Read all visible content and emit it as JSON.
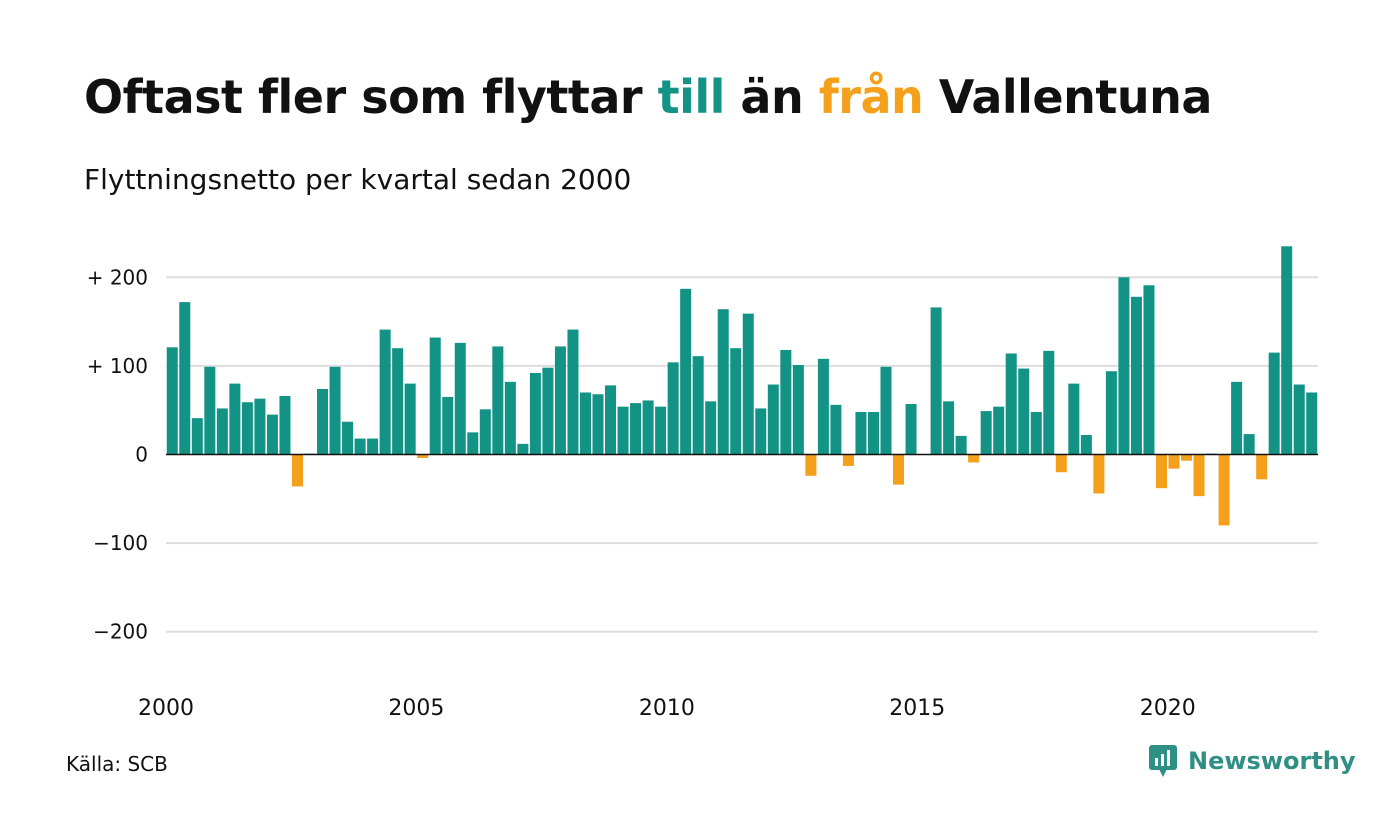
{
  "header": {
    "title_part1": "Oftast fler som flyttar ",
    "title_to": "till",
    "title_part2": " än ",
    "title_from": "från",
    "title_part3": " Vallentuna",
    "subtitle": "Flyttningsnetto per kvartal sedan 2000"
  },
  "footer": {
    "source": "Källa: SCB",
    "logo_text": "Newsworthy",
    "logo_icon": "newsworthy-logo-icon"
  },
  "colors": {
    "positive": "#139385",
    "negative": "#f5a01a",
    "grid": "#dddddd",
    "zero_line": "#111111",
    "logo": "#2f8f84"
  },
  "chart_data": {
    "type": "bar",
    "title": "Oftast fler som flyttar till än från Vallentuna",
    "subtitle": "Flyttningsnetto per kvartal sedan 2000",
    "xlabel": "",
    "ylabel": "",
    "ylim": [
      -250,
      250
    ],
    "y_ticks": [
      200,
      100,
      0,
      -100,
      -200
    ],
    "y_tick_labels": [
      "+ 200",
      "+ 100",
      "0",
      "−100",
      "−200"
    ],
    "x_ticks": [
      2000,
      2005,
      2010,
      2015,
      2020
    ],
    "x_tick_labels": [
      "2000",
      "2005",
      "2010",
      "2015",
      "2020"
    ],
    "start": "2000 Q1",
    "end": "2022 Q4",
    "grid": true,
    "categories": [
      "2000 Q1",
      "2000 Q2",
      "2000 Q3",
      "2000 Q4",
      "2001 Q1",
      "2001 Q2",
      "2001 Q3",
      "2001 Q4",
      "2002 Q1",
      "2002 Q2",
      "2002 Q3",
      "2002 Q4",
      "2003 Q1",
      "2003 Q2",
      "2003 Q3",
      "2003 Q4",
      "2004 Q1",
      "2004 Q2",
      "2004 Q3",
      "2004 Q4",
      "2005 Q1",
      "2005 Q2",
      "2005 Q3",
      "2005 Q4",
      "2006 Q1",
      "2006 Q2",
      "2006 Q3",
      "2006 Q4",
      "2007 Q1",
      "2007 Q2",
      "2007 Q3",
      "2007 Q4",
      "2008 Q1",
      "2008 Q2",
      "2008 Q3",
      "2008 Q4",
      "2009 Q1",
      "2009 Q2",
      "2009 Q3",
      "2009 Q4",
      "2010 Q1",
      "2010 Q2",
      "2010 Q3",
      "2010 Q4",
      "2011 Q1",
      "2011 Q2",
      "2011 Q3",
      "2011 Q4",
      "2012 Q1",
      "2012 Q2",
      "2012 Q3",
      "2012 Q4",
      "2013 Q1",
      "2013 Q2",
      "2013 Q3",
      "2013 Q4",
      "2014 Q1",
      "2014 Q2",
      "2014 Q3",
      "2014 Q4",
      "2015 Q1",
      "2015 Q2",
      "2015 Q3",
      "2015 Q4",
      "2016 Q1",
      "2016 Q2",
      "2016 Q3",
      "2016 Q4",
      "2017 Q1",
      "2017 Q2",
      "2017 Q3",
      "2017 Q4",
      "2018 Q1",
      "2018 Q2",
      "2018 Q3",
      "2018 Q4",
      "2019 Q1",
      "2019 Q2",
      "2019 Q3",
      "2019 Q4",
      "2020 Q1",
      "2020 Q2",
      "2020 Q3",
      "2020 Q4",
      "2021 Q1",
      "2021 Q2",
      "2021 Q3",
      "2021 Q4",
      "2022 Q1",
      "2022 Q2",
      "2022 Q3",
      "2022 Q4"
    ],
    "values": [
      121,
      172,
      41,
      99,
      52,
      80,
      59,
      63,
      45,
      66,
      -36,
      1,
      74,
      99,
      37,
      18,
      18,
      141,
      120,
      80,
      -4,
      132,
      65,
      126,
      25,
      51,
      122,
      82,
      12,
      92,
      98,
      122,
      141,
      70,
      68,
      78,
      54,
      58,
      61,
      54,
      104,
      187,
      111,
      60,
      164,
      120,
      159,
      52,
      79,
      118,
      101,
      -24,
      108,
      56,
      -13,
      48,
      48,
      99,
      -34,
      57,
      0,
      166,
      60,
      21,
      -9,
      49,
      54,
      114,
      97,
      48,
      117,
      -20,
      80,
      22,
      -44,
      94,
      200,
      178,
      191,
      -38,
      -16,
      -7,
      -47,
      1,
      -80,
      82,
      23,
      -28,
      115,
      235,
      79,
      70
    ]
  }
}
